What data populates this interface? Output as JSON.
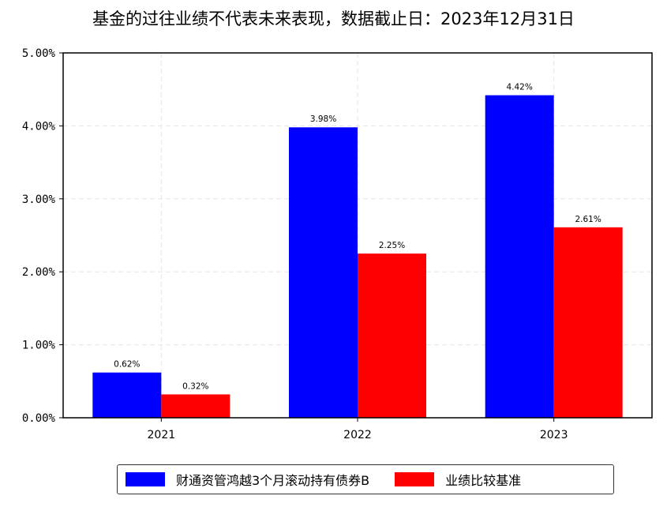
{
  "chart_data": {
    "type": "bar",
    "title": "基金的过往业绩不代表未来表现，数据截止日：2023年12月31日",
    "categories": [
      "2021",
      "2022",
      "2023"
    ],
    "series": [
      {
        "name": "财通资管鸿越3个月滚动持有债券B",
        "color": "#0000ff",
        "values": [
          0.62,
          3.98,
          4.42
        ],
        "labels": [
          "0.62%",
          "3.98%",
          "4.42%"
        ]
      },
      {
        "name": "业绩比较基准",
        "color": "#ff0000",
        "values": [
          0.32,
          2.25,
          2.61
        ],
        "labels": [
          "0.32%",
          "2.25%",
          "2.61%"
        ]
      }
    ],
    "yticks": [
      "0.00%",
      "1.00%",
      "2.00%",
      "3.00%",
      "4.00%",
      "5.00%"
    ],
    "ylim": [
      0,
      5
    ],
    "xlabel": "",
    "ylabel": "",
    "grid": true,
    "legend_position": "bottom-center"
  }
}
